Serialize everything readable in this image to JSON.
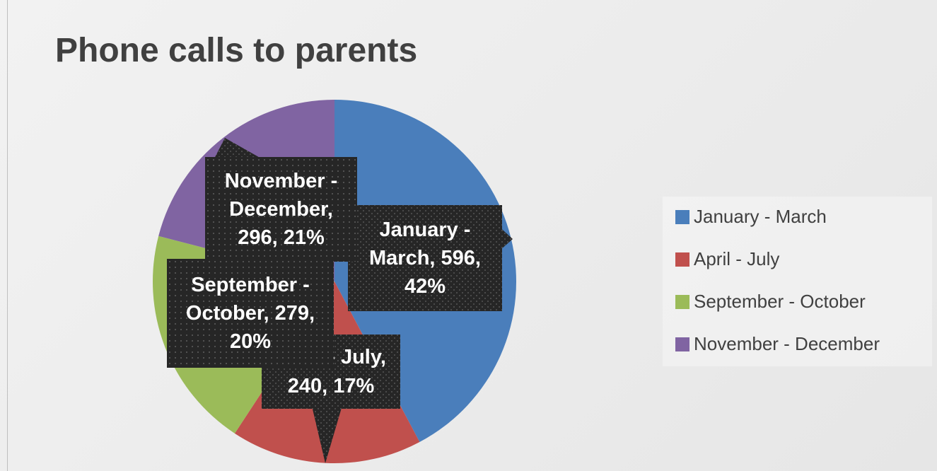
{
  "chart_data": {
    "type": "pie",
    "title": "Phone calls to parents",
    "categories": [
      "January - March",
      "April - July",
      "September - October",
      "November - December"
    ],
    "values": [
      596,
      240,
      279,
      296
    ],
    "value_labels": [
      "January - March, 596, 42%",
      "April - July, 240, 17%",
      "September - October, 279, 20%",
      "November - December, 296, 21%"
    ],
    "colors": [
      "#4a7ebb",
      "#c0504d",
      "#9bbb59",
      "#8064a2"
    ],
    "legend": "right"
  }
}
